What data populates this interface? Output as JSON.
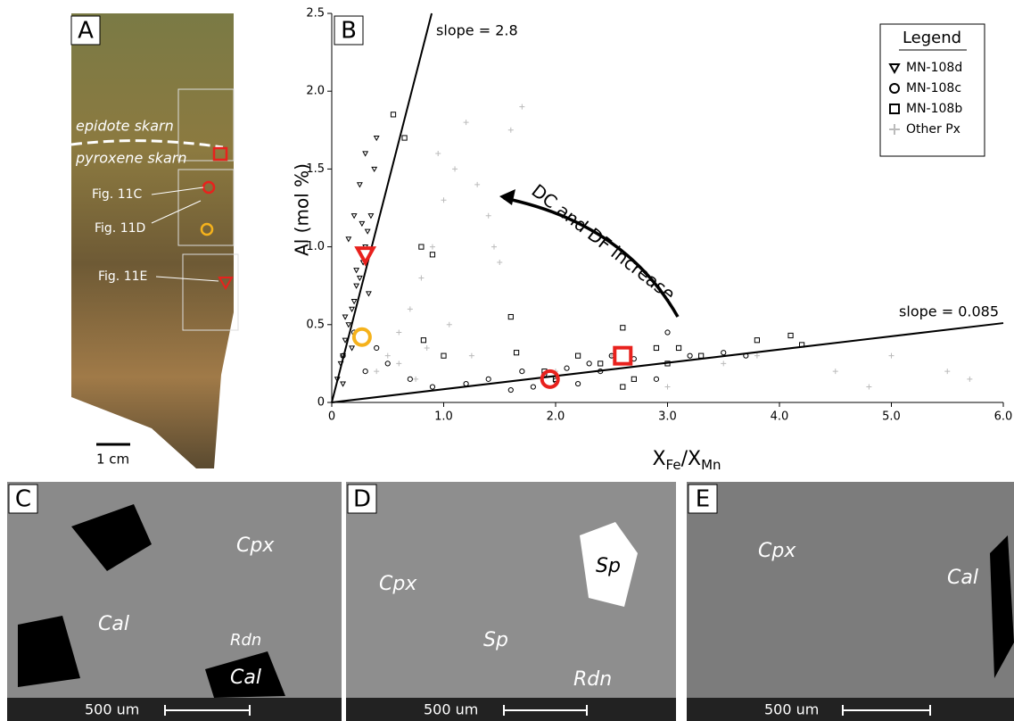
{
  "chart_data": {
    "type": "scatter",
    "panel_label": "B",
    "x_label": [
      "X",
      "Fe",
      "/X",
      "Mn"
    ],
    "y_label": "Al (mol %)",
    "xlim": [
      0,
      6
    ],
    "ylim": [
      0,
      2.5
    ],
    "xticks": [
      0,
      {
        "value": 1,
        "label": "1.0"
      },
      {
        "value": 2,
        "label": "2.0"
      },
      {
        "value": 3,
        "label": "3.0"
      },
      {
        "value": 4,
        "label": "4.0"
      },
      {
        "value": 5,
        "label": "5.0"
      },
      {
        "value": 6,
        "label": "6.0"
      }
    ],
    "yticks": [
      0,
      {
        "value": 0.5,
        "label": "0.5"
      },
      {
        "value": 1,
        "label": "1.0"
      },
      {
        "value": 1.5,
        "label": "1.5"
      },
      {
        "value": 2,
        "label": "2.0"
      },
      {
        "value": 2.5,
        "label": "2.5"
      }
    ],
    "legend_title": "Legend",
    "legend": "upper right",
    "series": [
      {
        "name": "MN-108d",
        "marker": "triangle",
        "color": "#000000",
        "x": [
          0.05,
          0.08,
          0.1,
          0.12,
          0.15,
          0.18,
          0.2,
          0.22,
          0.25,
          0.28,
          0.3,
          0.32,
          0.35,
          0.38,
          0.4,
          0.15,
          0.2,
          0.25,
          0.3,
          0.12,
          0.22,
          0.27,
          0.33,
          0.18,
          0.1
        ],
        "values": [
          0.15,
          0.25,
          0.3,
          0.4,
          0.5,
          0.6,
          0.65,
          0.75,
          0.8,
          0.9,
          1.0,
          1.1,
          1.2,
          1.5,
          1.7,
          1.05,
          1.2,
          1.4,
          1.6,
          0.55,
          0.85,
          1.15,
          0.7,
          0.35,
          0.12
        ]
      },
      {
        "name": "MN-108c",
        "marker": "circle",
        "color": "#000000",
        "x": [
          0.1,
          0.2,
          0.3,
          0.4,
          0.5,
          0.7,
          0.9,
          1.2,
          1.4,
          1.6,
          1.7,
          1.8,
          1.9,
          2.0,
          2.1,
          2.2,
          2.3,
          2.4,
          2.5,
          2.7,
          2.9,
          3.0,
          3.2,
          3.5,
          3.7
        ],
        "values": [
          0.3,
          0.45,
          0.2,
          0.35,
          0.25,
          0.15,
          0.1,
          0.12,
          0.15,
          0.08,
          0.2,
          0.1,
          0.18,
          0.14,
          0.22,
          0.12,
          0.25,
          0.2,
          0.3,
          0.28,
          0.15,
          0.45,
          0.3,
          0.32,
          0.3
        ]
      },
      {
        "name": "MN-108b",
        "marker": "square",
        "color": "#000000",
        "x": [
          0.55,
          0.65,
          0.8,
          0.9,
          0.82,
          1.0,
          1.6,
          1.9,
          2.0,
          2.2,
          2.4,
          2.6,
          2.7,
          2.9,
          3.0,
          3.3,
          3.8,
          4.1,
          4.2,
          2.6,
          1.65,
          3.1
        ],
        "values": [
          1.85,
          1.7,
          1.0,
          0.95,
          0.4,
          0.3,
          0.55,
          0.2,
          0.15,
          0.3,
          0.25,
          0.48,
          0.15,
          0.35,
          0.25,
          0.3,
          0.4,
          0.43,
          0.37,
          0.1,
          0.32,
          0.35
        ]
      },
      {
        "name": "Other Px",
        "marker": "plus",
        "color": "#bbbbbb",
        "x": [
          0.4,
          0.5,
          0.6,
          0.7,
          0.8,
          0.9,
          1.0,
          1.1,
          1.2,
          1.3,
          1.4,
          1.5,
          1.6,
          1.7,
          0.6,
          0.75,
          0.85,
          1.05,
          1.25,
          2.0,
          2.5,
          3.0,
          3.5,
          4.5,
          5.0,
          5.5,
          5.7,
          4.8,
          3.8,
          0.95,
          1.45
        ],
        "values": [
          0.2,
          0.3,
          0.45,
          0.6,
          0.8,
          1.0,
          1.3,
          1.5,
          1.8,
          1.4,
          1.2,
          0.9,
          1.75,
          1.9,
          0.25,
          0.15,
          0.35,
          0.5,
          0.3,
          0.2,
          0.3,
          0.1,
          0.25,
          0.2,
          0.3,
          0.2,
          0.15,
          0.1,
          0.3,
          1.6,
          1.0
        ]
      }
    ],
    "highlights": [
      {
        "marker": "triangle",
        "color": "#e8211d",
        "x": 0.3,
        "value": 0.95
      },
      {
        "marker": "circle",
        "color": "#f5b21c",
        "x": 0.27,
        "value": 0.42
      },
      {
        "marker": "circle",
        "color": "#e8211d",
        "x": 1.95,
        "value": 0.15
      },
      {
        "marker": "square",
        "color": "#e8211d",
        "x": 2.6,
        "value": 0.3
      }
    ],
    "lines": [
      {
        "slope": 2.8,
        "label": "slope = 2.8"
      },
      {
        "slope": 0.085,
        "label": "slope = 0.085"
      }
    ],
    "annotation": "DC and DF increase"
  },
  "panel_a": {
    "label": "A",
    "epidote": "epidote skarn",
    "pyroxene": "pyroxene skarn",
    "fig_c": "Fig. 11C",
    "fig_d": "Fig. 11D",
    "fig_e": "Fig. 11E",
    "scale": "1 cm"
  },
  "panel_c": {
    "label": "C",
    "cpx": "Cpx",
    "cal_1": "Cal",
    "rdn": "Rdn",
    "cal_2": "Cal",
    "scale": "500 um"
  },
  "panel_d": {
    "label": "D",
    "cpx": "Cpx",
    "sp_1": "Sp",
    "sp_2": "Sp",
    "rdn": "Rdn",
    "scale": "500 um"
  },
  "panel_e": {
    "label": "E",
    "cpx": "Cpx",
    "cal": "Cal",
    "scale": "500 um"
  }
}
